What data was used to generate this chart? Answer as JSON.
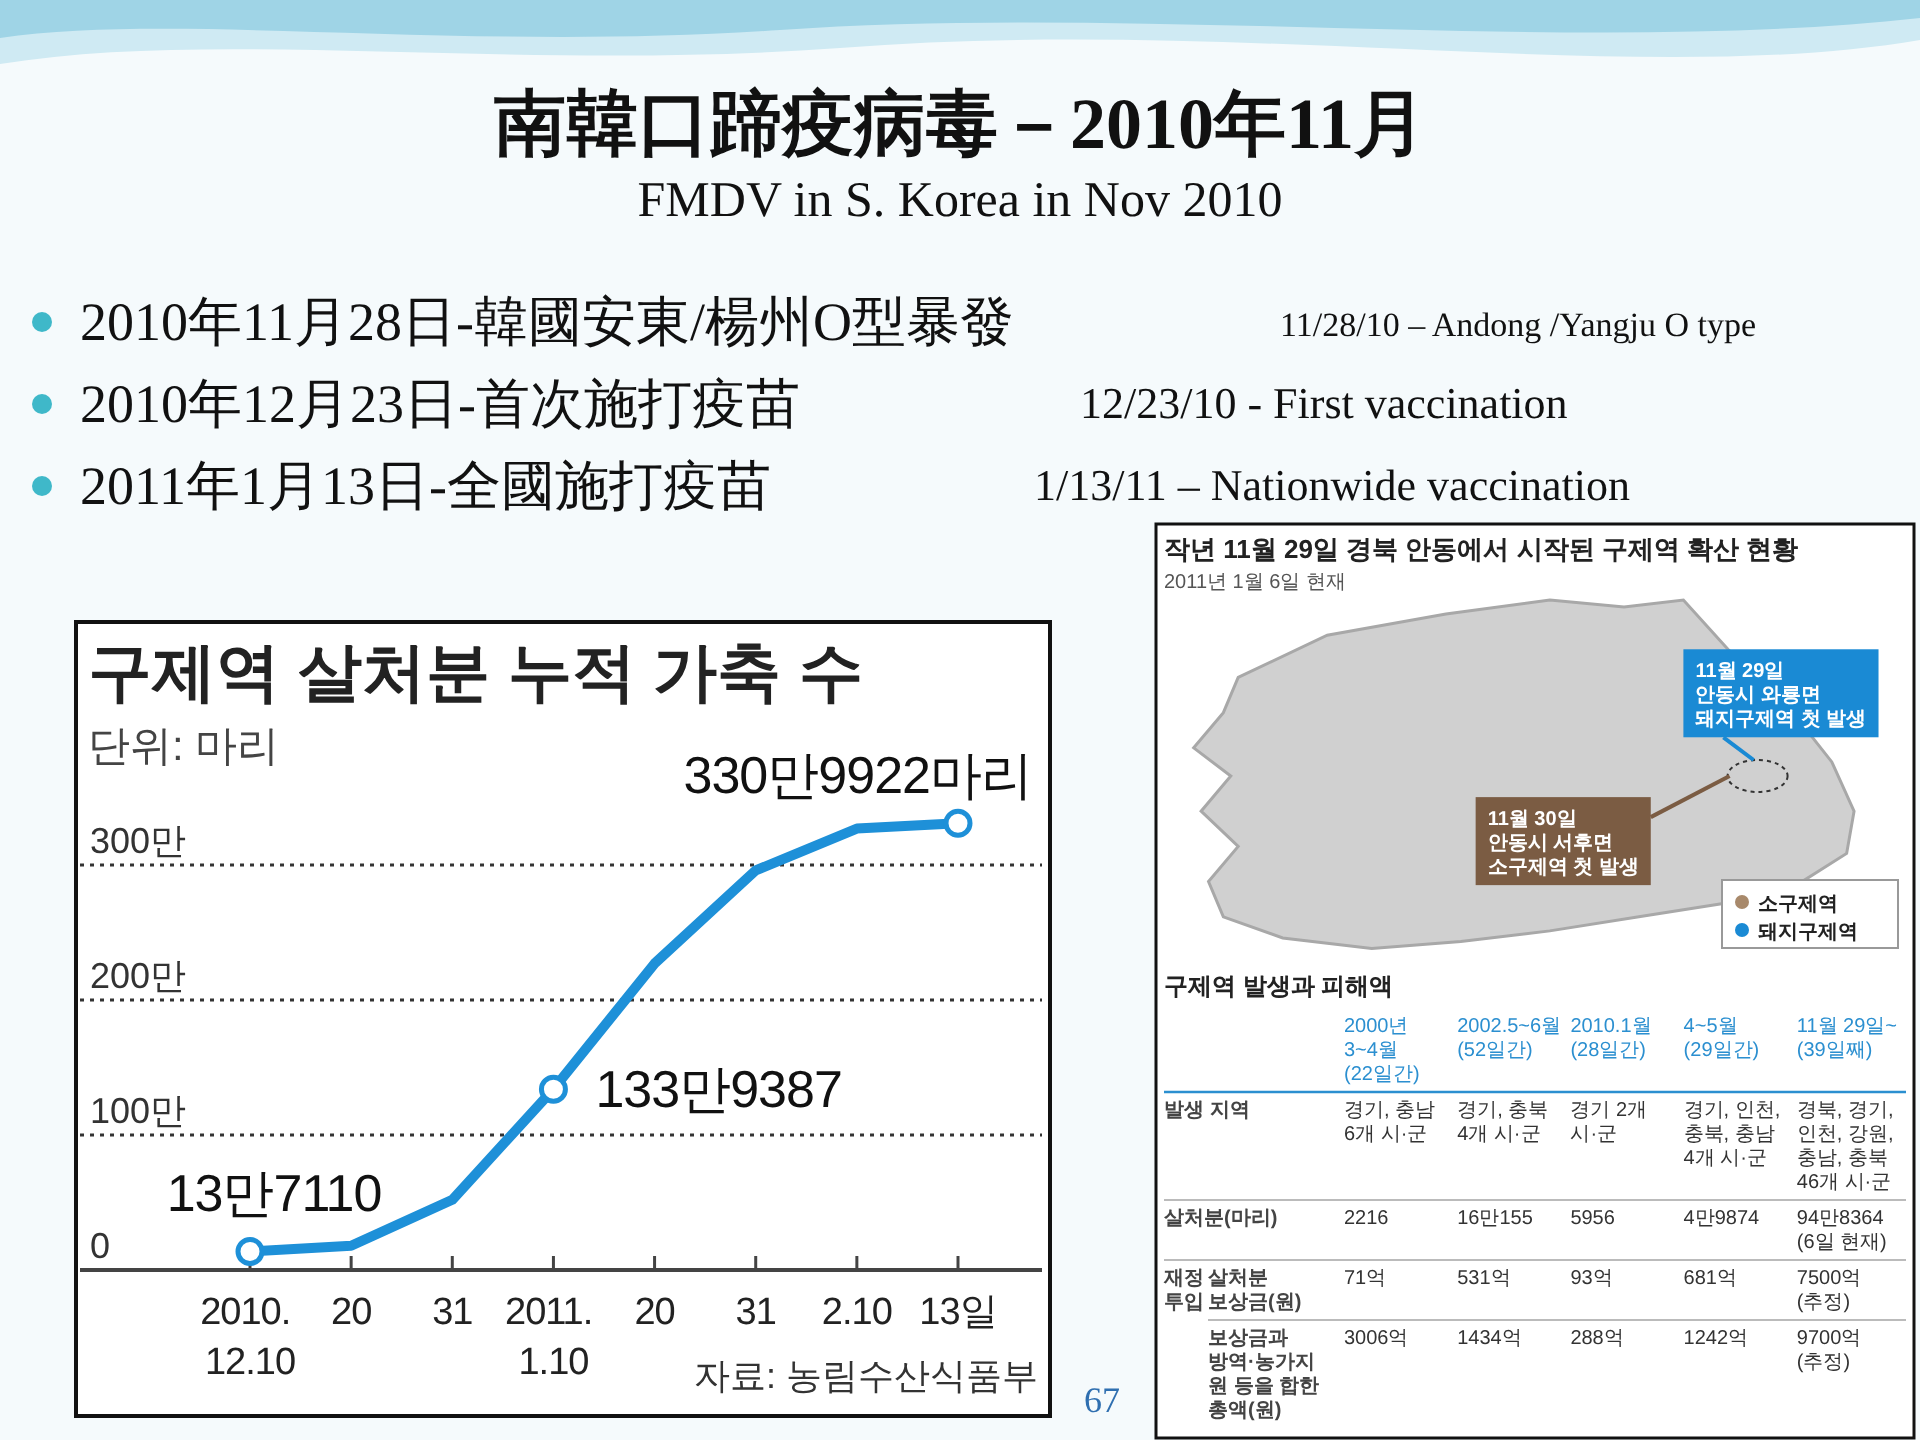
{
  "chart_data": [
    {
      "type": "other",
      "title": "南韓口蹄疫病毒－2010年11月",
      "subtitle": "FMDV in S. Korea in Nov 2010",
      "annotations": [
        "2010年11月28日-韓國安東/楊州O型暴發",
        "11/28/10 – Andong /Yangju O type",
        "2010年12月23日-首次施打疫苗",
        "12/23/10 - First vaccination",
        "2011年1月13日-全國施打疫苗",
        "1/13/11 – Nationwide vaccination",
        "67"
      ]
    },
    {
      "type": "line",
      "title": "구제역 살처분 누적 가축 수",
      "subtitle": "단위: 마리",
      "categories": [
        "2010. 12.10",
        "20",
        "31",
        "2011. 1.10",
        "20",
        "31",
        "2.10",
        "13일"
      ],
      "series": [
        {
          "type": "line",
          "color": "#1e90d8",
          "values": [
            13.711,
            18,
            52,
            133.9387,
            227,
            296,
            327,
            330.9922
          ]
        },
        {
          "type": "scatter",
          "color": "#1e90d8",
          "marker": "circle",
          "x": [
            "2010. 12.10",
            "2011. 1.10",
            "13일"
          ],
          "values": [
            13.711,
            133.9387,
            330.9922
          ]
        }
      ],
      "ylim": [
        0,
        480
      ],
      "yticks": [
        0,
        {
          "value": 100,
          "label": "100만"
        },
        {
          "value": 200,
          "label": "200만"
        },
        {
          "value": 300,
          "label": "300만"
        }
      ],
      "grid": "y",
      "annotations": [
        {
          "text": "13만7110",
          "x": "2010. 12.10",
          "y": 13.711
        },
        {
          "text": "133만9387",
          "x": "2011. 1.10",
          "y": 133.9387
        },
        {
          "text": "330만9922마리",
          "x": "13일",
          "y": 330.9922
        },
        "자료: 농림수산식품부"
      ]
    },
    {
      "type": "other",
      "title": "작년 11월 29일 경북 안동에서 시작된 구제역 확산 현황",
      "subtitle": "2011년 1월 6일 현재",
      "annotations": [
        "11월 29일\n안동시 와룡면\n돼지구제역 첫 발생",
        "11월 30일\n안동시 서후면\n소구제역 첫 발생",
        "소구제역",
        "돼지구제역"
      ]
    },
    {
      "type": "other",
      "title": "구제역 발생과 피해액",
      "annotations": [
        "2000년 3~4월 (22일간)",
        "2002.5~6월 (52일간)",
        "2010.1월 (28일간)",
        "4~5월 (29일간)",
        "11월 29일~ (39일째)",
        "발생 지역",
        "경기, 충남 6개 시·군",
        "경기, 충북 4개 시·군",
        "경기 2개 시·군",
        "경기, 인천, 충북, 충남 4개 시·군",
        "경북, 경기, 인천, 강원, 충남, 충북 46개 시·군",
        "살처분(마리)",
        "2216",
        "16만155",
        "5956",
        "4만9874",
        "94만8364(6일 현재)",
        "재정 투입",
        "살처분 보상금(원)",
        "71억",
        "531억",
        "93억",
        "681억",
        "7500억(추정)",
        "보상금과 방역·농가지원 등을 합한 총액(원)",
        "3006억",
        "1434억",
        "288억",
        "1242억",
        "9700억(추정)"
      ]
    }
  ]
}
